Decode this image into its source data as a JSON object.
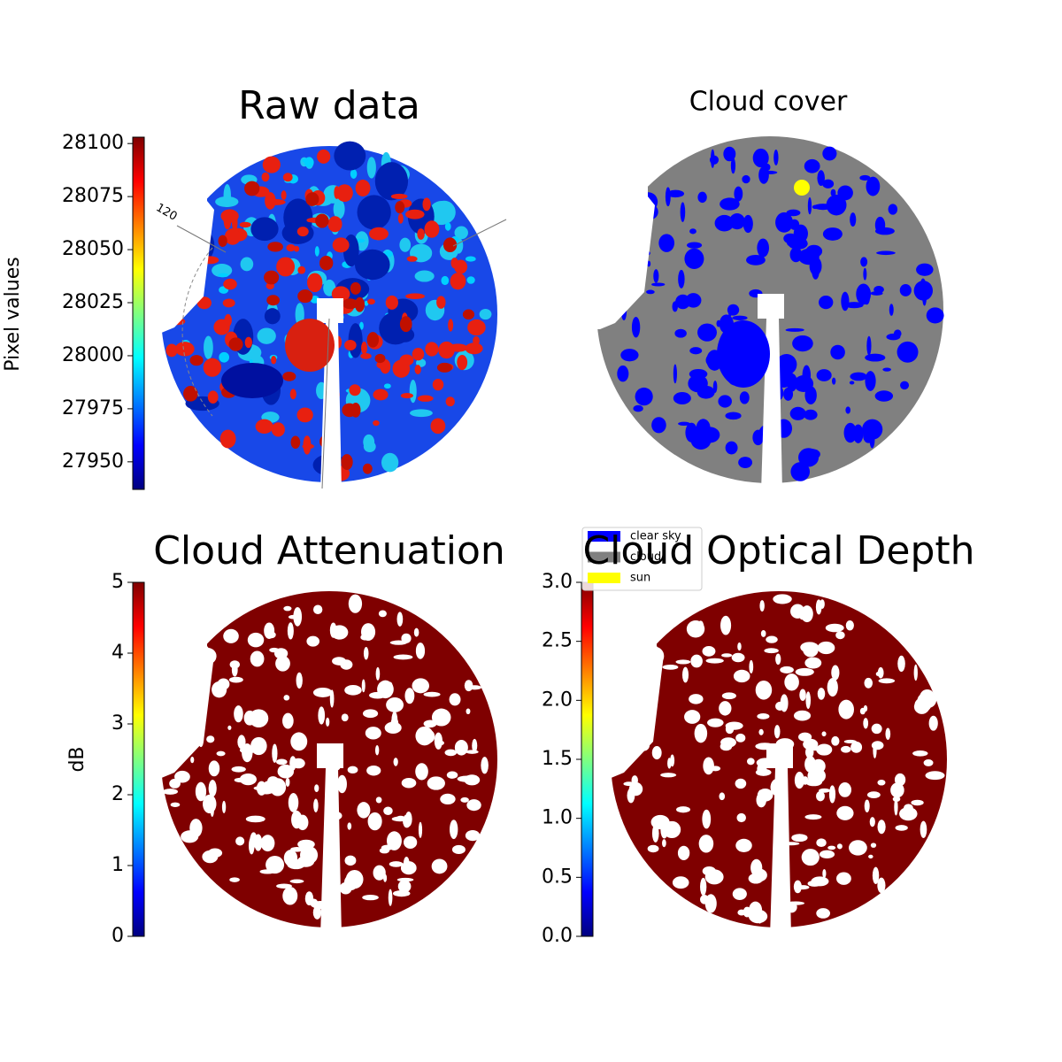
{
  "chart_data": [
    {
      "type": "image",
      "title": "Raw data",
      "annotation": "120",
      "colorbar": {
        "label": "Pixel values",
        "lim": [
          27937,
          28103
        ],
        "ticks": [
          27950,
          27975,
          28000,
          28025,
          28050,
          28075,
          28100
        ]
      }
    },
    {
      "type": "image",
      "title": "Cloud cover",
      "legend": [
        {
          "name": "clear sky",
          "color": "#0000ff"
        },
        {
          "name": "cloud",
          "color": "#808080"
        },
        {
          "name": "sun",
          "color": "#ffff00"
        }
      ]
    },
    {
      "type": "image",
      "title": "Cloud Attenuation",
      "colorbar": {
        "label": "dB",
        "lim": [
          0,
          5
        ],
        "ticks": [
          0,
          1,
          2,
          3,
          4,
          5
        ]
      }
    },
    {
      "type": "image",
      "title": "Cloud Optical Depth",
      "colorbar": {
        "lim": [
          0,
          3
        ],
        "ticks": [
          {
            "value": 0,
            "label": "0.0"
          },
          {
            "value": 0.5,
            "label": "0.5"
          },
          {
            "value": 1,
            "label": "1.0"
          },
          {
            "value": 1.5,
            "label": "1.5"
          },
          {
            "value": 2,
            "label": "2.0"
          },
          {
            "value": 2.5,
            "label": "2.5"
          },
          {
            "value": 3,
            "label": "3.0"
          }
        ]
      }
    }
  ]
}
